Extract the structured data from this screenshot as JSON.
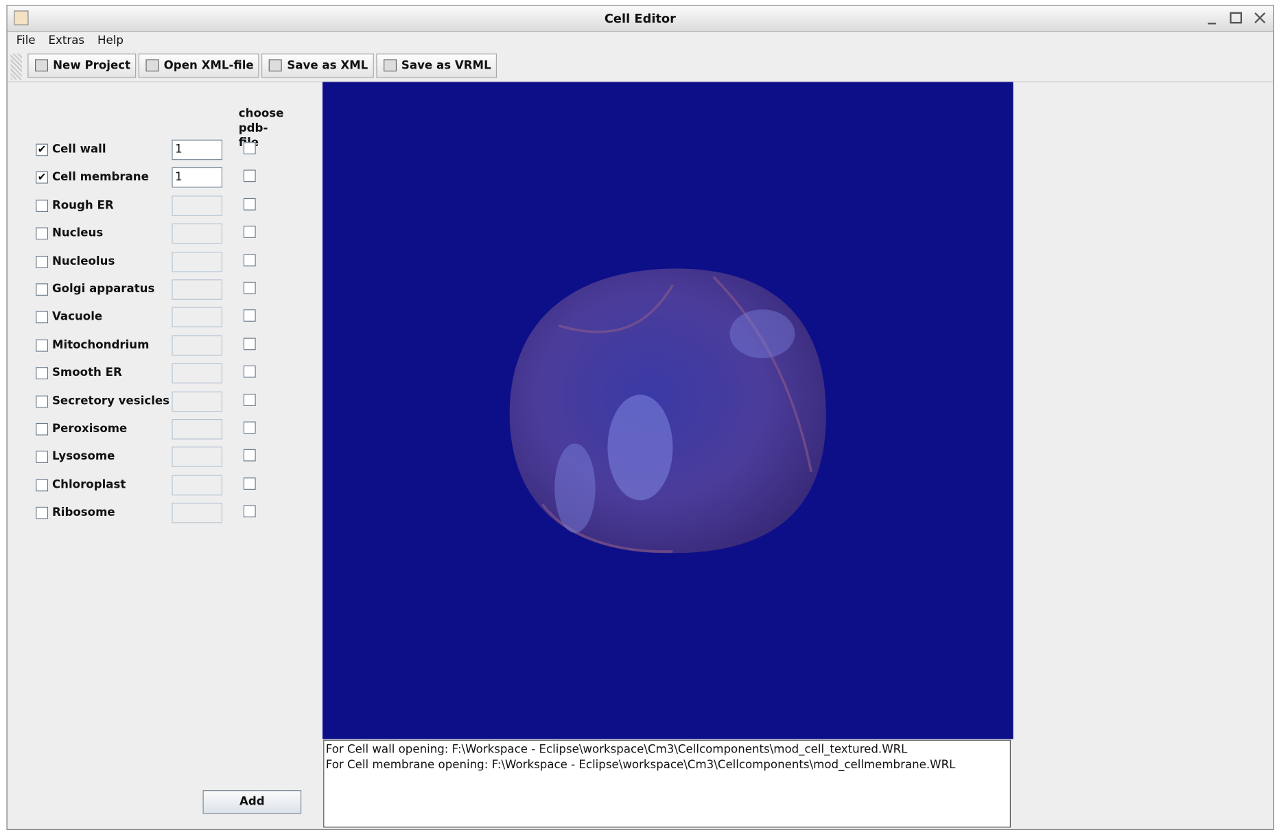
{
  "window": {
    "title": "Cell Editor"
  },
  "menu": [
    "File",
    "Extras",
    "Help"
  ],
  "toolbar": [
    "New Project",
    "Open XML-file",
    "Save as XML",
    "Save as VRML"
  ],
  "panel": {
    "column_header": "choose pdb-file",
    "components": [
      {
        "name": "Cell wall",
        "checked": true,
        "value": "1"
      },
      {
        "name": "Cell membrane",
        "checked": true,
        "value": "1"
      },
      {
        "name": "Rough ER",
        "checked": false
      },
      {
        "name": "Nucleus",
        "checked": false
      },
      {
        "name": "Nucleolus",
        "checked": false
      },
      {
        "name": "Golgi apparatus",
        "checked": false
      },
      {
        "name": "Vacuole",
        "checked": false
      },
      {
        "name": "Mitochondrium",
        "checked": false
      },
      {
        "name": "Smooth ER",
        "checked": false
      },
      {
        "name": "Secretory vesicles",
        "checked": false
      },
      {
        "name": "Peroxisome",
        "checked": false
      },
      {
        "name": "Lysosome",
        "checked": false
      },
      {
        "name": "Chloroplast",
        "checked": false
      },
      {
        "name": "Ribosome",
        "checked": false
      }
    ],
    "button": "Add"
  },
  "log": [
    "For Cell wall opening: F:\\Workspace - Eclipse\\workspace\\Cm3\\Cellcomponents\\mod_cell_textured.WRL",
    "For Cell membrane opening: F:\\Workspace - Eclipse\\workspace\\Cm3\\Cellcomponents\\mod_cellmembrane.WRL"
  ]
}
